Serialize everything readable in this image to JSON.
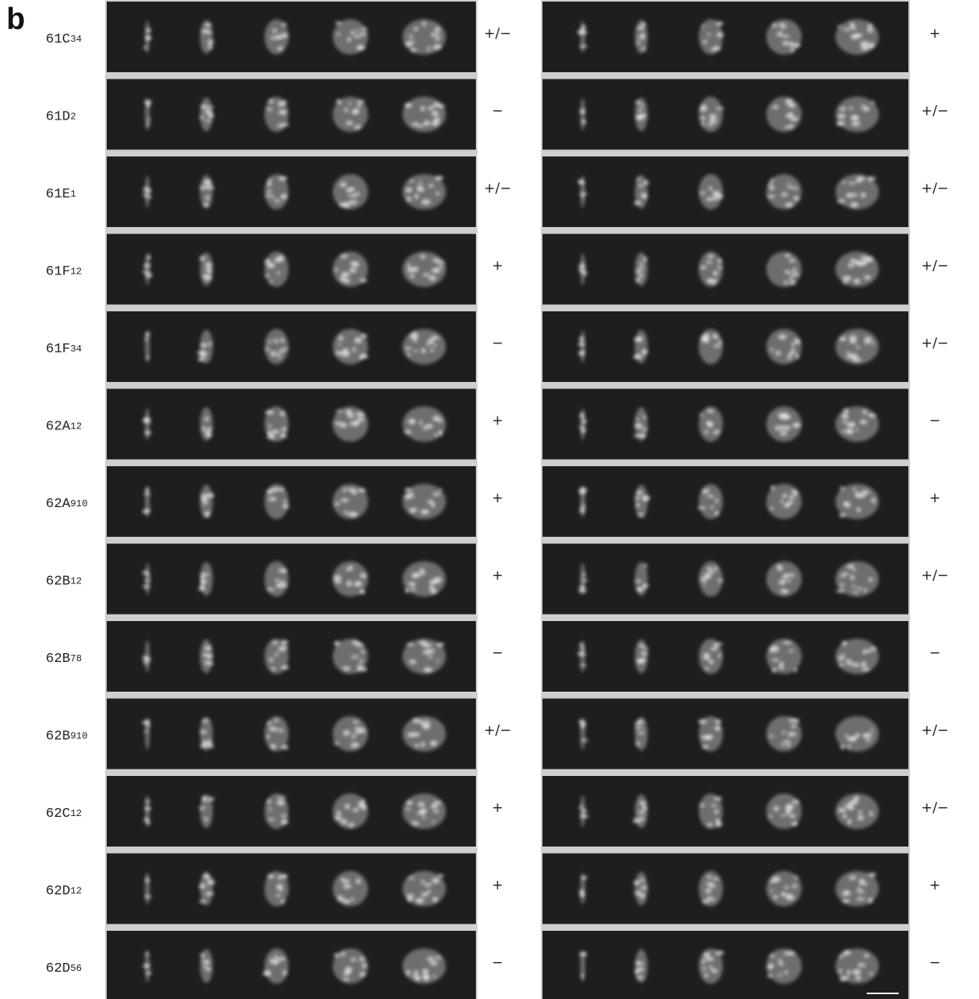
{
  "panel_label": "b",
  "rows": [
    {
      "band": "61C",
      "sub": "34",
      "left_score": "+/−",
      "right_score": "+"
    },
    {
      "band": "61D",
      "sub": "2",
      "left_score": "−",
      "right_score": "+/−"
    },
    {
      "band": "61E",
      "sub": "1",
      "left_score": "+/−",
      "right_score": "+/−"
    },
    {
      "band": "61F",
      "sub": "12",
      "left_score": "+",
      "right_score": "+/−"
    },
    {
      "band": "61F",
      "sub": "34",
      "left_score": "−",
      "right_score": "+/−"
    },
    {
      "band": "62A",
      "sub": "12",
      "left_score": "+",
      "right_score": "−"
    },
    {
      "band": "62A",
      "sub": "910",
      "left_score": "+",
      "right_score": "+"
    },
    {
      "band": "62B",
      "sub": "12",
      "left_score": "+",
      "right_score": "+/−"
    },
    {
      "band": "62B",
      "sub": "78",
      "left_score": "−",
      "right_score": "−"
    },
    {
      "band": "62B",
      "sub": "910",
      "left_score": "+/−",
      "right_score": "+/−"
    },
    {
      "band": "62C",
      "sub": "12",
      "left_score": "+",
      "right_score": "+/−"
    },
    {
      "band": "62D",
      "sub": "12",
      "left_score": "+",
      "right_score": "+"
    },
    {
      "band": "62D",
      "sub": "56",
      "left_score": "−",
      "right_score": "−"
    }
  ]
}
